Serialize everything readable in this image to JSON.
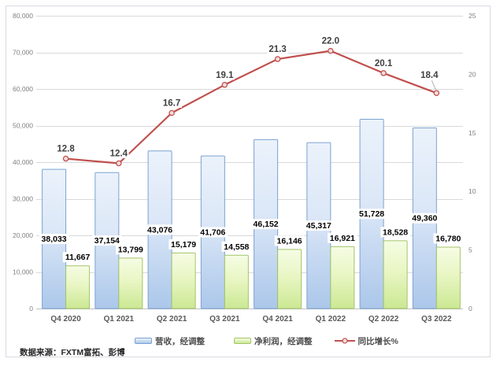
{
  "source_note": "数据来源：FXTM富拓、彭博",
  "colors": {
    "frame_border": "#d7dbe1",
    "gridline": "#d9d9d9",
    "axis_line": "#c0c0c0",
    "axis_text": "#7f7f7f",
    "category_text": "#595959",
    "bar_label_text": "#000000",
    "line_label_text": "#404040",
    "leader_line": "#a6a6a6"
  },
  "chart_data": {
    "type": "combo",
    "title": "",
    "categories": [
      "Q4 2020",
      "Q1 2021",
      "Q2 2021",
      "Q3 2021",
      "Q4 2021",
      "Q1 2022",
      "Q2 2022",
      "Q3 2022"
    ],
    "series": [
      {
        "name": "营收，经调整",
        "type": "bar",
        "axis": "left",
        "values": [
          38033,
          37154,
          43076,
          41706,
          46152,
          45317,
          51728,
          49360
        ],
        "labels": [
          "38,033",
          "37,154",
          "43,076",
          "41,706",
          "46,152",
          "45,317",
          "51,728",
          "49,360"
        ],
        "fill_top": "#ebf2fb",
        "fill_mid": "#dbe7f7",
        "fill_bottom": "#abc7ea",
        "border": "#7da2d1"
      },
      {
        "name": "净利润，经调整",
        "type": "bar",
        "axis": "left",
        "values": [
          11667,
          13799,
          15179,
          14558,
          16146,
          16921,
          18528,
          16780
        ],
        "labels": [
          "11,667",
          "13,799",
          "15,179",
          "14,558",
          "16,146",
          "16,921",
          "18,528",
          "16,780"
        ],
        "fill_top": "#f5fce4",
        "fill_mid": "#e9f6c4",
        "fill_bottom": "#cbe893",
        "border": "#a2c469"
      },
      {
        "name": "同比增长%",
        "type": "line",
        "axis": "right",
        "values": [
          12.8,
          12.4,
          16.7,
          19.1,
          21.3,
          22.0,
          20.1,
          18.4
        ],
        "labels": [
          "12.8",
          "12.4",
          "16.7",
          "19.1",
          "21.3",
          "22.0",
          "20.1",
          "18.4"
        ],
        "color": "#c0504d",
        "marker_fill": "#f2dedd"
      }
    ],
    "left_axis": {
      "min": 0,
      "max": 80000,
      "step": 10000,
      "tick_labels": [
        "0",
        "10,000",
        "20,000",
        "30,000",
        "40,000",
        "50,000",
        "60,000",
        "70,000",
        "80,000"
      ]
    },
    "right_axis": {
      "min": 0,
      "max": 25,
      "step": 5,
      "tick_labels": [
        "0",
        "5",
        "10",
        "15",
        "20",
        "25"
      ]
    },
    "grid": true,
    "legend_position": "bottom"
  }
}
